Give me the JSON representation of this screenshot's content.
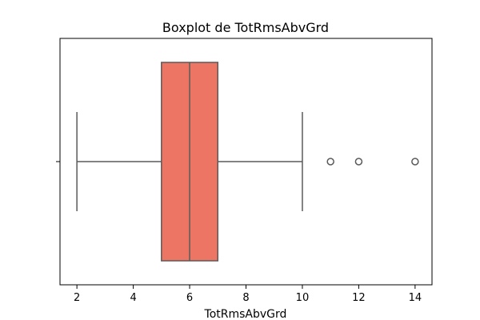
{
  "chart_data": {
    "type": "boxplot",
    "title": "Boxplot de TotRmsAbvGrd",
    "xlabel": "TotRmsAbvGrd",
    "ylabel": "",
    "orientation": "horizontal",
    "xlim": [
      1.4,
      14.6
    ],
    "xticks": [
      2,
      4,
      6,
      8,
      10,
      12,
      14
    ],
    "x_tick_labels": [
      "2",
      "4",
      "6",
      "8",
      "10",
      "12",
      "14"
    ],
    "grid": false,
    "box_color": "#EC7563",
    "line_color": "#5a5a5a",
    "box": {
      "min": 2,
      "q1": 5,
      "median": 6,
      "q3": 7,
      "max": 10
    },
    "outliers": [
      11,
      12,
      14
    ]
  }
}
